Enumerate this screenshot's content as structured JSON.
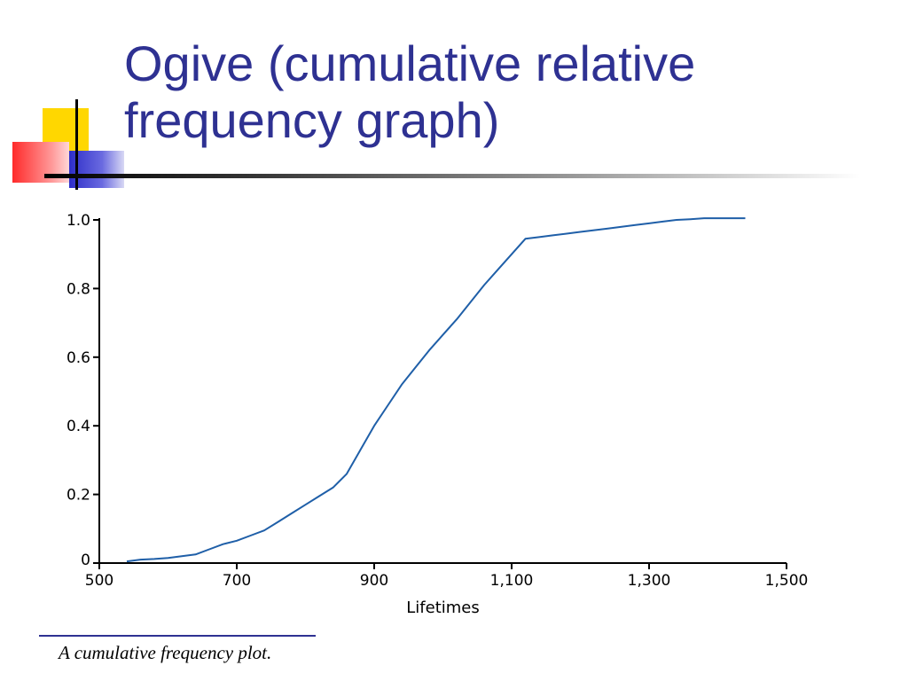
{
  "slide": {
    "title_line1": "Ogive (cumulative relative",
    "title_line2": "frequency graph)",
    "caption": "A cumulative frequency plot.",
    "title_color": "#2E3192",
    "accent_colors": {
      "yellow": "#FFD700",
      "red": "#FF3B3B",
      "blue": "#3333CC"
    }
  },
  "chart_data": {
    "type": "line",
    "xlabel": "Lifetimes",
    "ylabel": "",
    "xlim": [
      500,
      1500
    ],
    "ylim": [
      0,
      1.0
    ],
    "x_ticks": [
      500,
      700,
      900,
      1100,
      1300,
      1500
    ],
    "x_tick_labels": [
      "500",
      "700",
      "900",
      "1,100",
      "1,300",
      "1,500"
    ],
    "y_ticks": [
      0,
      0.2,
      0.4,
      0.6,
      0.8,
      1.0
    ],
    "y_tick_labels": [
      "0",
      "0.2",
      "0.4",
      "0.6",
      "0.8",
      "1.0"
    ],
    "grid": false,
    "line_color": "#1F5FA8",
    "series": [
      {
        "x": [
          540,
          560,
          580,
          600,
          620,
          640,
          660,
          680,
          700,
          720,
          740,
          760,
          780,
          800,
          820,
          840,
          860,
          880,
          900,
          920,
          940,
          960,
          980,
          1000,
          1020,
          1040,
          1060,
          1080,
          1100,
          1120,
          1140,
          1160,
          1180,
          1200,
          1220,
          1240,
          1260,
          1280,
          1300,
          1320,
          1340,
          1360,
          1380,
          1400,
          1420,
          1440
        ],
        "y": [
          0.005,
          0.01,
          0.012,
          0.015,
          0.02,
          0.025,
          0.04,
          0.055,
          0.065,
          0.08,
          0.095,
          0.12,
          0.145,
          0.17,
          0.195,
          0.22,
          0.26,
          0.33,
          0.4,
          0.46,
          0.52,
          0.57,
          0.62,
          0.665,
          0.71,
          0.76,
          0.81,
          0.855,
          0.9,
          0.945,
          0.95,
          0.955,
          0.96,
          0.965,
          0.97,
          0.975,
          0.98,
          0.985,
          0.99,
          0.995,
          1.0,
          1.002,
          1.005,
          1.005,
          1.005,
          1.005
        ]
      }
    ]
  }
}
